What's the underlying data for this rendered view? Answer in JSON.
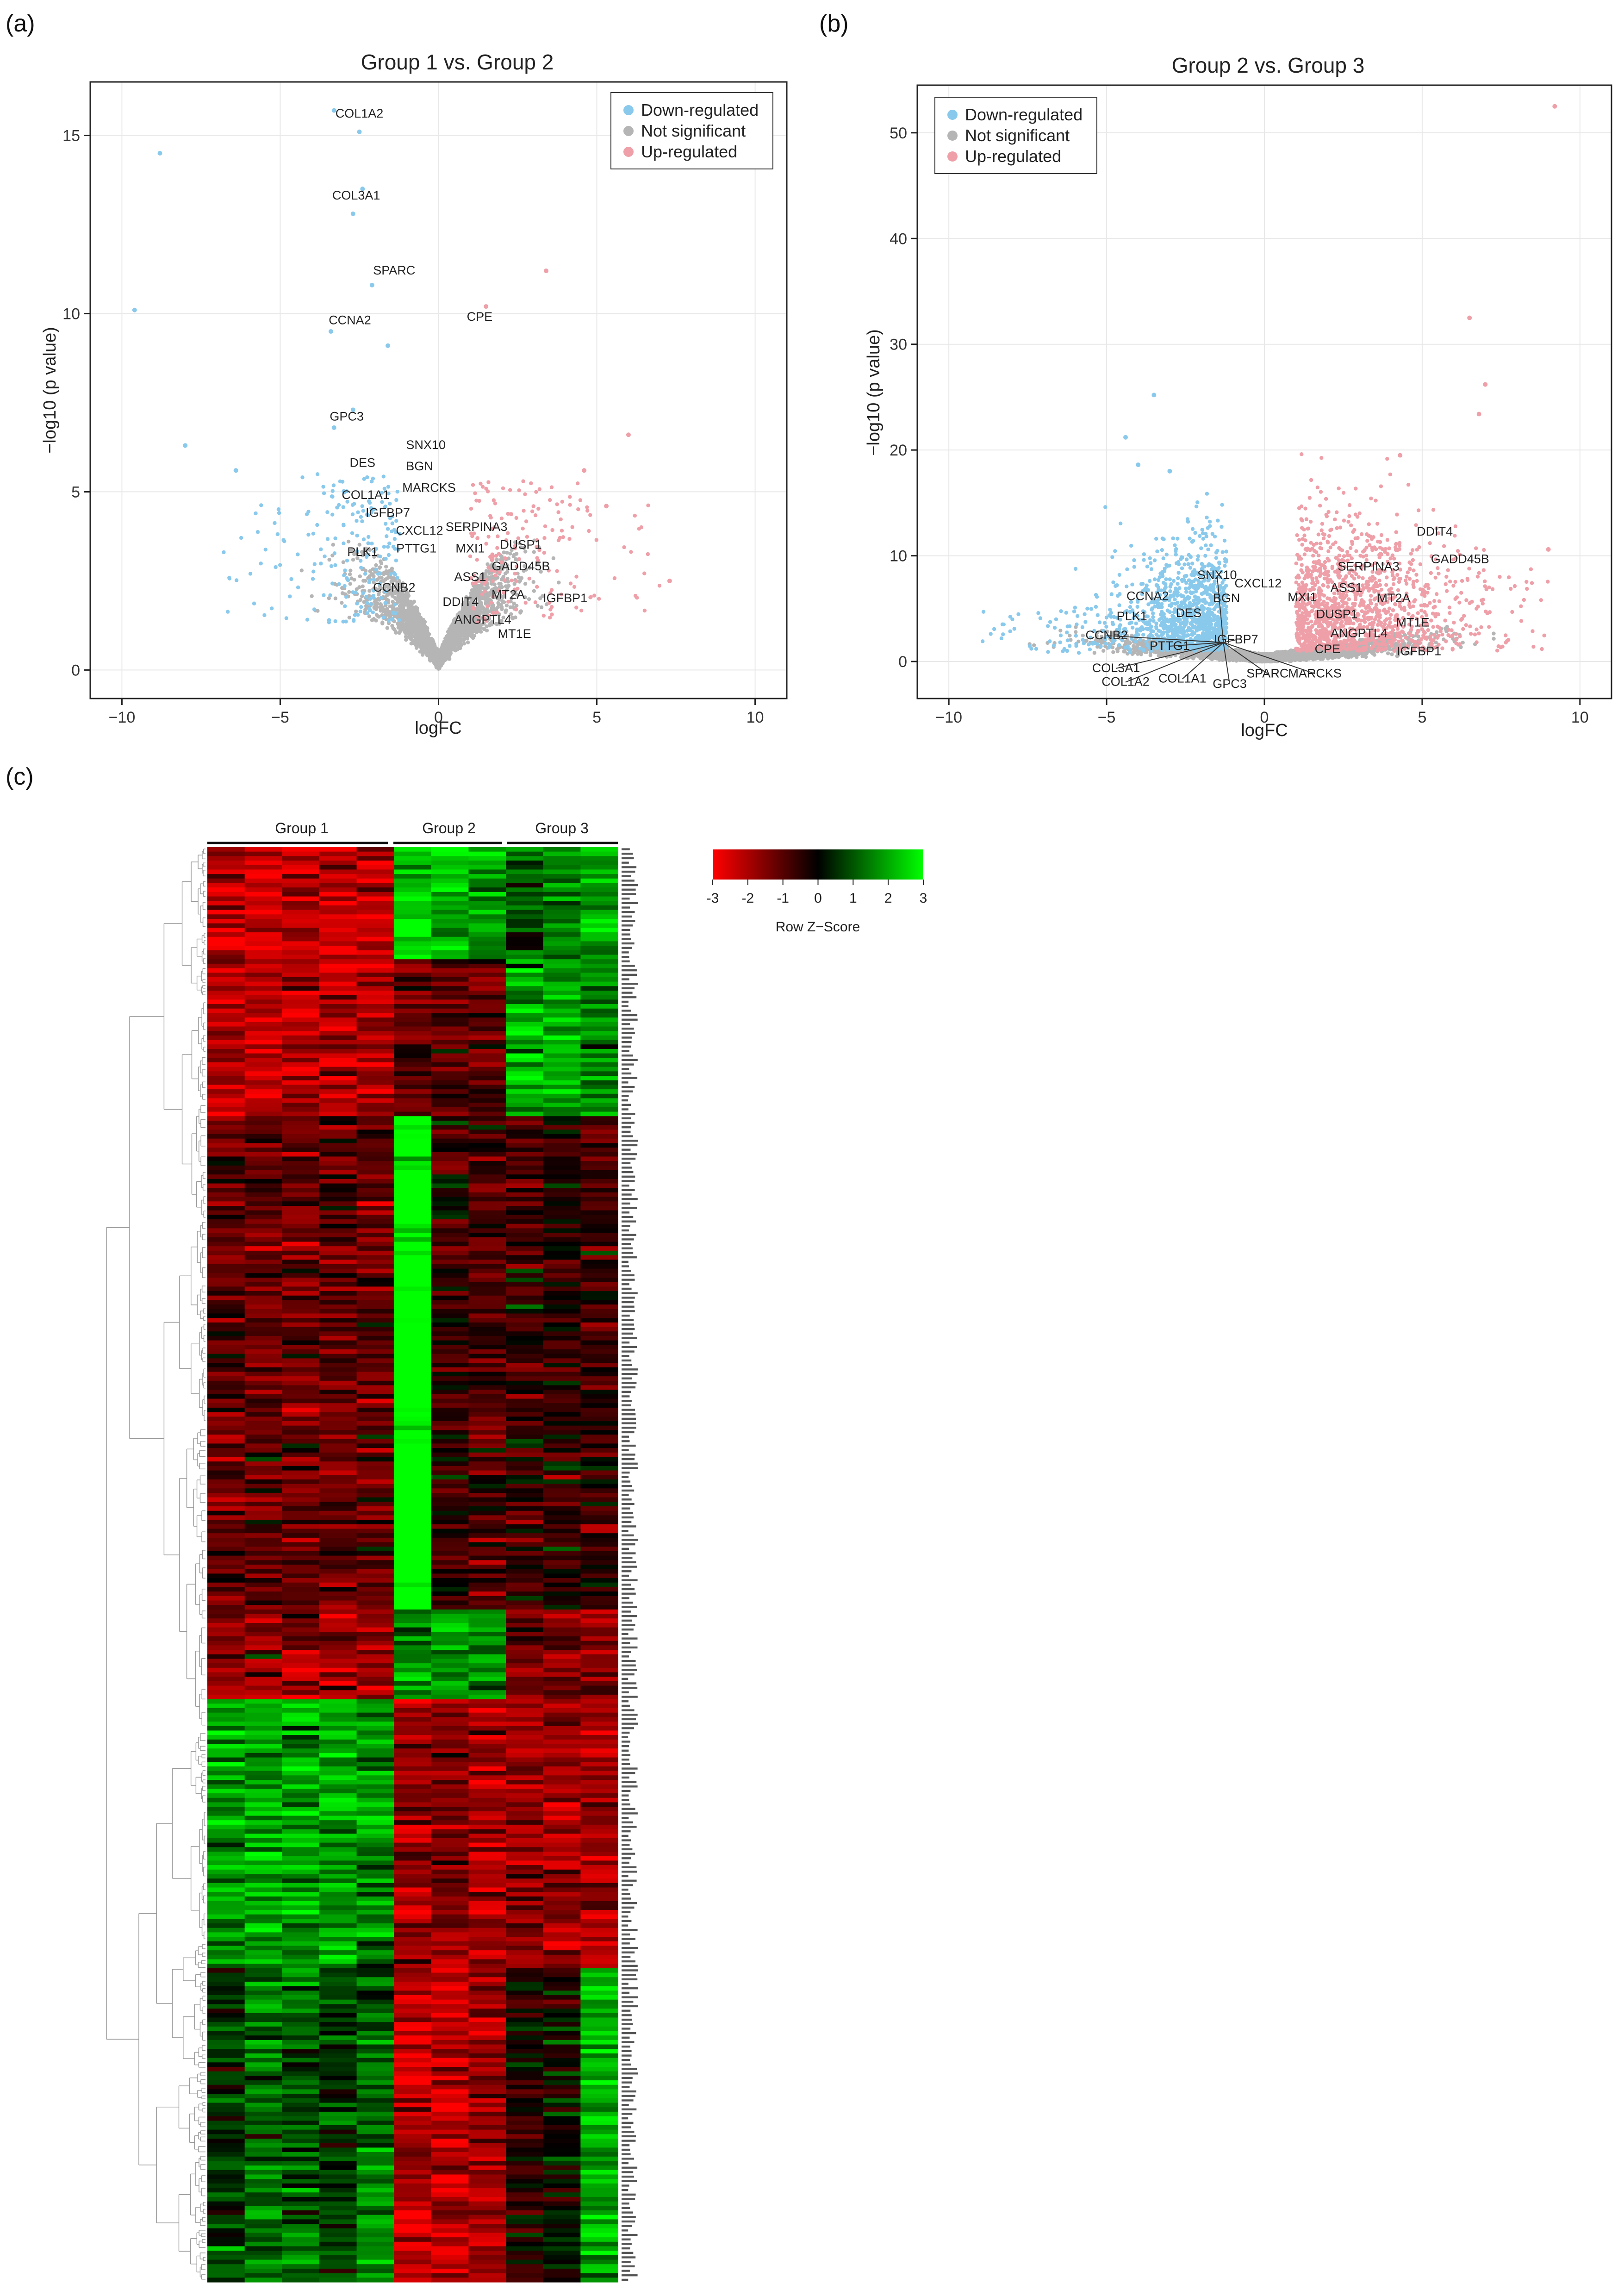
{
  "panels": {
    "a": "(a)",
    "b": "(b)",
    "c": "(c)"
  },
  "legend": {
    "down": "Down-regulated",
    "ns": "Not significant",
    "up": "Up-regulated",
    "colors": {
      "down": "#89c9ec",
      "ns": "#b5b5b5",
      "up": "#ee9fa8"
    }
  },
  "chart_data": [
    {
      "type": "scatter",
      "panel": "a",
      "title": "Group 1 vs. Group 2",
      "xlabel": "logFC",
      "ylabel": "−log10 (p value)",
      "xlim": [
        -11,
        11
      ],
      "ylim": [
        -0.8,
        16.5
      ],
      "xticks": [
        -10,
        -5,
        0,
        5,
        10
      ],
      "xtick_labels": [
        "−10",
        "−5",
        "0",
        "5",
        "10"
      ],
      "yticks": [
        0,
        5,
        10,
        15
      ],
      "ytick_labels": [
        "0",
        "5",
        "10",
        "15"
      ],
      "grid": true,
      "legend_position": "top-right",
      "highlight_points": [
        {
          "x": -3.3,
          "y": 15.7,
          "cls": "down"
        },
        {
          "x": -8.8,
          "y": 14.5,
          "cls": "down"
        },
        {
          "x": -2.5,
          "y": 15.1,
          "cls": "down"
        },
        {
          "x": -2.4,
          "y": 13.5,
          "cls": "down"
        },
        {
          "x": -2.7,
          "y": 12.8,
          "cls": "down"
        },
        {
          "x": -9.6,
          "y": 10.1,
          "cls": "down"
        },
        {
          "x": -2.1,
          "y": 10.8,
          "cls": "down"
        },
        {
          "x": -3.4,
          "y": 9.5,
          "cls": "down"
        },
        {
          "x": -1.6,
          "y": 9.1,
          "cls": "down"
        },
        {
          "x": -3.3,
          "y": 6.8,
          "cls": "down"
        },
        {
          "x": -2.7,
          "y": 7.3,
          "cls": "down"
        },
        {
          "x": -8.0,
          "y": 6.3,
          "cls": "down"
        },
        {
          "x": -6.4,
          "y": 5.6,
          "cls": "down"
        },
        {
          "x": 3.4,
          "y": 11.2,
          "cls": "up"
        },
        {
          "x": 1.5,
          "y": 10.2,
          "cls": "up"
        },
        {
          "x": 6.0,
          "y": 6.6,
          "cls": "up"
        },
        {
          "x": 7.3,
          "y": 2.5,
          "cls": "up"
        },
        {
          "x": 4.6,
          "y": 5.6,
          "cls": "up"
        },
        {
          "x": 5.3,
          "y": 4.6,
          "cls": "up"
        }
      ],
      "annotations": [
        {
          "label": "COL1A2",
          "x": -2.5,
          "y": 15.5
        },
        {
          "label": "COL3A1",
          "x": -2.6,
          "y": 13.2
        },
        {
          "label": "SPARC",
          "x": -1.4,
          "y": 11.1
        },
        {
          "label": "CCNA2",
          "x": -2.8,
          "y": 9.7
        },
        {
          "label": "CPE",
          "x": 1.3,
          "y": 9.8
        },
        {
          "label": "GPC3",
          "x": -2.9,
          "y": 7.0
        },
        {
          "label": "SNX10",
          "x": -0.4,
          "y": 6.2
        },
        {
          "label": "DES",
          "x": -2.4,
          "y": 5.7
        },
        {
          "label": "BGN",
          "x": -0.6,
          "y": 5.6
        },
        {
          "label": "MARCKS",
          "x": -0.3,
          "y": 5.0
        },
        {
          "label": "COL1A1",
          "x": -2.3,
          "y": 4.8
        },
        {
          "label": "IGFBP7",
          "x": -1.6,
          "y": 4.3
        },
        {
          "label": "CXCL12",
          "x": -0.6,
          "y": 3.8
        },
        {
          "label": "SERPINA3",
          "x": 1.2,
          "y": 3.9
        },
        {
          "label": "PTTG1",
          "x": -0.7,
          "y": 3.3
        },
        {
          "label": "PLK1",
          "x": -2.4,
          "y": 3.2
        },
        {
          "label": "MXI1",
          "x": 1.0,
          "y": 3.3
        },
        {
          "label": "DUSP1",
          "x": 2.6,
          "y": 3.4
        },
        {
          "label": "GADD45B",
          "x": 2.6,
          "y": 2.8
        },
        {
          "label": "ASS1",
          "x": 1.0,
          "y": 2.5
        },
        {
          "label": "CCNB2",
          "x": -1.4,
          "y": 2.2
        },
        {
          "label": "MT2A",
          "x": 2.2,
          "y": 2.0
        },
        {
          "label": "IGFBP1",
          "x": 4.0,
          "y": 1.9
        },
        {
          "label": "DDIT4",
          "x": 0.7,
          "y": 1.8
        },
        {
          "label": "ANGPTL4",
          "x": 1.4,
          "y": 1.3
        },
        {
          "label": "MT1E",
          "x": 2.4,
          "y": 0.9
        }
      ]
    },
    {
      "type": "scatter",
      "panel": "b",
      "title": "Group 2 vs. Group 3",
      "xlabel": "logFC",
      "ylabel": "−log10 (p value)",
      "xlim": [
        -11,
        11
      ],
      "ylim": [
        -3.5,
        54.5
      ],
      "xticks": [
        -10,
        -5,
        0,
        5,
        10
      ],
      "xtick_labels": [
        "−10",
        "−5",
        "0",
        "5",
        "10"
      ],
      "yticks": [
        0,
        10,
        20,
        30,
        40,
        50
      ],
      "ytick_labels": [
        "0",
        "10",
        "20",
        "30",
        "40",
        "50"
      ],
      "grid": true,
      "legend_position": "top-left",
      "highlight_points": [
        {
          "x": 9.2,
          "y": 52.5,
          "cls": "up"
        },
        {
          "x": 6.5,
          "y": 32.5,
          "cls": "up"
        },
        {
          "x": 7.0,
          "y": 26.2,
          "cls": "up"
        },
        {
          "x": 6.8,
          "y": 23.4,
          "cls": "up"
        },
        {
          "x": -3.5,
          "y": 25.2,
          "cls": "down"
        },
        {
          "x": -4.4,
          "y": 21.2,
          "cls": "down"
        },
        {
          "x": -4.0,
          "y": 18.6,
          "cls": "down"
        },
        {
          "x": -3.0,
          "y": 18.0,
          "cls": "down"
        },
        {
          "x": 4.3,
          "y": 19.5,
          "cls": "up"
        },
        {
          "x": 9.0,
          "y": 10.6,
          "cls": "up"
        }
      ],
      "annotations": [
        {
          "label": "DDIT4",
          "x": 5.4,
          "y": 11.9
        },
        {
          "label": "GADD45B",
          "x": 6.2,
          "y": 9.3
        },
        {
          "label": "SERPINA3",
          "x": 3.3,
          "y": 8.6
        },
        {
          "label": "SNX10",
          "x": -1.5,
          "y": 7.8
        },
        {
          "label": "CXCL12",
          "x": -0.2,
          "y": 7.0
        },
        {
          "label": "ASS1",
          "x": 2.6,
          "y": 6.6
        },
        {
          "label": "CCNA2",
          "x": -3.7,
          "y": 5.8
        },
        {
          "label": "BGN",
          "x": -1.2,
          "y": 5.6
        },
        {
          "label": "MXI1",
          "x": 1.2,
          "y": 5.7
        },
        {
          "label": "MT2A",
          "x": 4.1,
          "y": 5.6
        },
        {
          "label": "PLK1",
          "x": -4.2,
          "y": 3.9
        },
        {
          "label": "DES",
          "x": -2.4,
          "y": 4.2
        },
        {
          "label": "DUSP1",
          "x": 2.3,
          "y": 4.1
        },
        {
          "label": "MT1E",
          "x": 4.7,
          "y": 3.3
        },
        {
          "label": "CCNB2",
          "x": -5.0,
          "y": 2.1
        },
        {
          "label": "IGFBP7",
          "x": -0.9,
          "y": 1.7
        },
        {
          "label": "ANGPTL4",
          "x": 3.0,
          "y": 2.3
        },
        {
          "label": "PTTG1",
          "x": -3.0,
          "y": 1.1
        },
        {
          "label": "CPE",
          "x": 2.0,
          "y": 0.8
        },
        {
          "label": "IGFBP1",
          "x": 4.9,
          "y": 0.6
        },
        {
          "label": "COL3A1",
          "x": -4.7,
          "y": -1.0
        },
        {
          "label": "SPARC",
          "x": 0.1,
          "y": -1.5
        },
        {
          "label": "MARCKS",
          "x": 1.6,
          "y": -1.5
        },
        {
          "label": "COL1A2",
          "x": -4.4,
          "y": -2.3
        },
        {
          "label": "COL1A1",
          "x": -2.6,
          "y": -2.0
        },
        {
          "label": "GPC3",
          "x": -1.1,
          "y": -2.5
        }
      ]
    },
    {
      "type": "heatmap",
      "panel": "c",
      "groups": [
        {
          "name": "Group 1",
          "columns": 5
        },
        {
          "name": "Group 2",
          "columns": 3
        },
        {
          "name": "Group 3",
          "columns": 3
        }
      ],
      "colorbar": {
        "title": "Row Z−Score",
        "range": [
          -3,
          3
        ],
        "ticks": [
          "-3",
          "-2",
          "-1",
          "0",
          "1",
          "2",
          "3"
        ],
        "low_color": "#ff0000",
        "mid_color": "#000000",
        "high_color": "#00ff00"
      },
      "row_clusters": [
        {
          "rows": 25,
          "pattern": [
            -1.6,
            -1.6,
            -1.6,
            -1.6,
            -1.6,
            1.6,
            1.6,
            1.2,
            0.8,
            1.0,
            1.4
          ]
        },
        {
          "rows": 35,
          "pattern": [
            -1.5,
            -1.5,
            -1.5,
            -1.5,
            -1.5,
            -0.8,
            -0.7,
            -0.8,
            1.4,
            1.4,
            1.3
          ]
        },
        {
          "rows": 110,
          "pattern": [
            -0.8,
            -0.8,
            -0.8,
            -0.8,
            -0.8,
            2.6,
            -0.4,
            -0.6,
            -0.5,
            -0.4,
            -0.5
          ]
        },
        {
          "rows": 20,
          "pattern": [
            -1.2,
            -1.2,
            -1.2,
            -1.2,
            -1.2,
            1.0,
            1.3,
            1.1,
            -1.0,
            -1.0,
            -1.0
          ]
        },
        {
          "rows": 60,
          "pattern": [
            1.3,
            1.4,
            1.4,
            1.3,
            1.2,
            -1.2,
            -1.2,
            -1.4,
            -1.3,
            -1.4,
            -1.5
          ]
        },
        {
          "rows": 70,
          "pattern": [
            0.4,
            0.9,
            0.7,
            0.5,
            1.0,
            -1.5,
            -1.5,
            -1.3,
            -0.2,
            0.0,
            1.4
          ]
        }
      ]
    }
  ]
}
